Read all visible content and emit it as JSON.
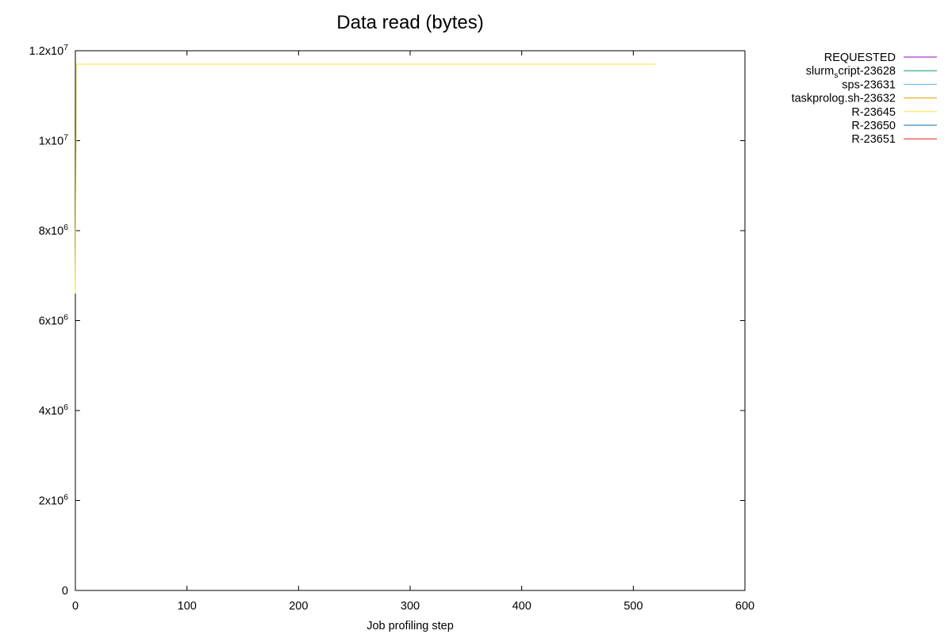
{
  "chart_data": {
    "type": "line",
    "title": "Data read (bytes)",
    "xlabel": "Job profiling step",
    "ylabel": "",
    "xlim": [
      0,
      600
    ],
    "ylim": [
      0,
      12000000
    ],
    "x_ticks": [
      {
        "value": 0,
        "label": "0"
      },
      {
        "value": 100,
        "label": "100"
      },
      {
        "value": 200,
        "label": "200"
      },
      {
        "value": 300,
        "label": "300"
      },
      {
        "value": 400,
        "label": "400"
      },
      {
        "value": 500,
        "label": "500"
      },
      {
        "value": 600,
        "label": "600"
      }
    ],
    "y_ticks": [
      {
        "value": 0,
        "mantissa": "0",
        "exponent": ""
      },
      {
        "value": 2000000,
        "mantissa": "2x10",
        "exponent": "6"
      },
      {
        "value": 4000000,
        "mantissa": "4x10",
        "exponent": "6"
      },
      {
        "value": 6000000,
        "mantissa": "6x10",
        "exponent": "6"
      },
      {
        "value": 8000000,
        "mantissa": "8x10",
        "exponent": "6"
      },
      {
        "value": 10000000,
        "mantissa": "1x10",
        "exponent": "7"
      },
      {
        "value": 12000000,
        "mantissa": "1.2x10",
        "exponent": "7"
      }
    ],
    "grid": false,
    "legend_position": "outside-top-right",
    "series": [
      {
        "name": "REQUESTED",
        "color": "#9400d3",
        "label_parts": [
          "REQUESTED"
        ],
        "x": [],
        "y": []
      },
      {
        "name": "slurm_script-23628",
        "color": "#009e73",
        "label_parts": [
          "slurm",
          "s",
          "cript-23628"
        ],
        "x": [],
        "y": []
      },
      {
        "name": "sps-23631",
        "color": "#56b4e9",
        "label_parts": [
          "sps-23631"
        ],
        "x": [],
        "y": []
      },
      {
        "name": "taskprolog.sh-23632",
        "color": "#e69f00",
        "label_parts": [
          "taskprolog.sh-23632"
        ],
        "x": [],
        "y": []
      },
      {
        "name": "R-23645",
        "color": "#f0e442",
        "label_parts": [
          "R-23645"
        ],
        "x": [
          0,
          1,
          2,
          520
        ],
        "y": [
          6600000,
          11700000,
          11700000,
          11700000
        ]
      },
      {
        "name": "R-23650",
        "color": "#0072b2",
        "label_parts": [
          "R-23650"
        ],
        "x": [],
        "y": []
      },
      {
        "name": "R-23651",
        "color": "#e51e10",
        "label_parts": [
          "R-23651"
        ],
        "x": [],
        "y": []
      }
    ]
  }
}
